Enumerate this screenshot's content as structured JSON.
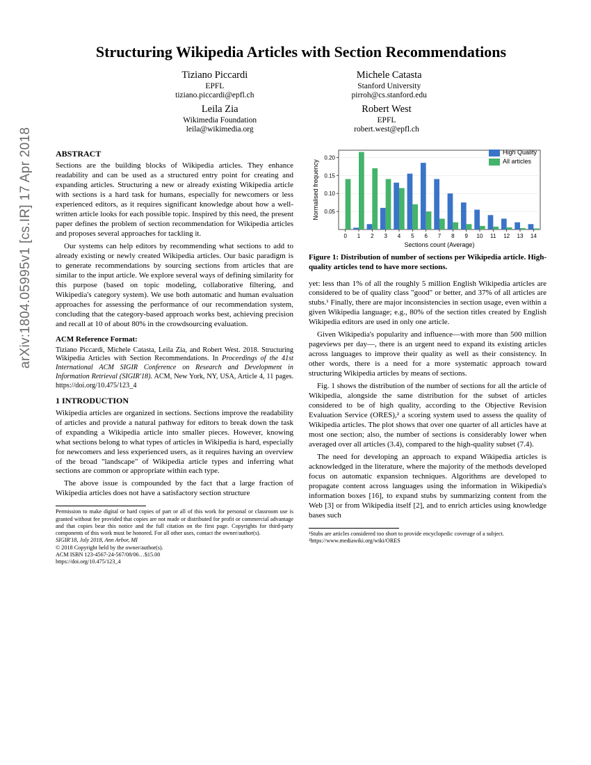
{
  "arxiv": "arXiv:1804.05995v1  [cs.IR]  17 Apr 2018",
  "title": "Structuring Wikipedia Articles with Section Recommendations",
  "authors": [
    {
      "name": "Tiziano Piccardi",
      "aff": "EPFL",
      "mail": "tiziano.piccardi@epfl.ch"
    },
    {
      "name": "Michele Catasta",
      "aff": "Stanford University",
      "mail": "pirroh@cs.stanford.edu"
    },
    {
      "name": "Leila Zia",
      "aff": "Wikimedia Foundation",
      "mail": "leila@wikimedia.org"
    },
    {
      "name": "Robert West",
      "aff": "EPFL",
      "mail": "robert.west@epfl.ch"
    }
  ],
  "abstract_head": "ABSTRACT",
  "abstract_p1": "Sections are the building blocks of Wikipedia articles. They enhance readability and can be used as a structured entry point for creating and expanding articles. Structuring a new or already existing Wikipedia article with sections is a hard task for humans, especially for newcomers or less experienced editors, as it requires significant knowledge about how a well-written article looks for each possible topic. Inspired by this need, the present paper defines the problem of section recommendation for Wikipedia articles and proposes several approaches for tackling it.",
  "abstract_p2": "Our systems can help editors by recommending what sections to add to already existing or newly created Wikipedia articles. Our basic paradigm is to generate recommendations by sourcing sections from articles that are similar to the input article. We explore several ways of defining similarity for this purpose (based on topic modeling, collaborative filtering, and Wikipedia's category system). We use both automatic and human evaluation approaches for assessing the performance of our recommendation system, concluding that the category-based approach works best, achieving precision and recall at 10 of about 80% in the crowdsourcing evaluation.",
  "ref_head": "ACM Reference Format:",
  "ref_body_a": "Tiziano Piccardi, Michele Catasta, Leila Zia, and Robert West. 2018. Structuring Wikipedia Articles with Section Recommendations. In ",
  "ref_body_i": "Proceedings of the 41st International ACM SIGIR Conference on Research and Development in Information Retrieval (SIGIR'18).",
  "ref_body_b": " ACM, New York, NY, USA, Article 4, 11 pages. https://doi.org/10.475/123_4",
  "intro_head": "1   INTRODUCTION",
  "intro_p1": "Wikipedia articles are organized in sections. Sections improve the readability of articles and provide a natural pathway for editors to break down the task of expanding a Wikipedia article into smaller pieces. However, knowing what sections belong to what types of articles in Wikipedia is hard, especially for newcomers and less experienced users, as it requires having an overview of the broad \"landscape\" of Wikipedia article types and inferring what sections are common or appropriate within each type.",
  "intro_p2": "The above issue is compounded by the fact that a large fraction of Wikipedia articles does not have a satisfactory section structure",
  "perm1": "Permission to make digital or hard copies of part or all of this work for personal or classroom use is granted without fee provided that copies are not made or distributed for profit or commercial advantage and that copies bear this notice and the full citation on the first page. Copyrights for third-party components of this work must be honored. For all other uses, contact the owner/author(s).",
  "perm2": "SIGIR'18, July 2018, Ann Arbor, MI",
  "perm3": "© 2018 Copyright held by the owner/author(s).",
  "perm4": "ACM ISBN 123-4567-24-567/08/06…$15.00",
  "perm5": "https://doi.org/10.475/123_4",
  "fig1_caption": "Figure 1: Distribution of number of sections per Wikipedia article. High-quality articles tend to have more sections.",
  "chart": {
    "type": "bar",
    "categories": [
      "0",
      "1",
      "2",
      "3",
      "4",
      "5",
      "6",
      "7",
      "8",
      "9",
      "10",
      "11",
      "12",
      "13",
      "14"
    ],
    "series": [
      {
        "name": "High Quality",
        "color": "#3a74c8",
        "values": [
          0,
          0.005,
          0.015,
          0.06,
          0.13,
          0.155,
          0.185,
          0.14,
          0.1,
          0.075,
          0.055,
          0.04,
          0.03,
          0.02,
          0.015
        ]
      },
      {
        "name": "All articles",
        "color": "#44b36b",
        "values": [
          0.14,
          0.215,
          0.17,
          0.14,
          0.115,
          0.07,
          0.05,
          0.03,
          0.02,
          0.015,
          0.01,
          0.008,
          0.006,
          0.004,
          0.003
        ]
      }
    ],
    "ylabel": "Normalised frequency",
    "xlabel": "Sections count (Average)",
    "ylim": [
      0,
      0.22
    ],
    "yticks": [
      0.05,
      0.1,
      0.15,
      0.2
    ],
    "background_color": "#ffffff",
    "grid_color": "#dddddd",
    "label_fontsize": 9,
    "tick_fontsize": 8,
    "bar_width": 0.4
  },
  "col2_p1": "yet: less than 1% of all the roughly 5 million English Wikipedia articles are considered to be of quality class \"good\" or better, and 37% of all articles are stubs.¹ Finally, there are major inconsistencies in section usage, even within a given Wikipedia language; e.g., 80% of the section titles created by English Wikipedia editors are used in only one article.",
  "col2_p2": "Given Wikipedia's popularity and influence—with more than 500 million pageviews per day—, there is an urgent need to expand its existing articles across languages to improve their quality as well as their consistency. In other words, there is a need for a more systematic approach toward structuring Wikipedia articles by means of sections.",
  "col2_p3": "Fig. 1 shows the distribution of the number of sections for all the article of Wikipedia, alongside the same distribution for the subset of articles considered to be of high quality, according to the Objective Revision Evaluation Service (ORES),² a scoring system used to assess the quality of Wikipedia articles. The plot shows that over one quarter of all articles have at most one section; also, the number of sections is considerably lower when averaged over all articles (3.4), compared to the high-quality subset (7.4).",
  "col2_p4": "The need for developing an approach to expand Wikipedia articles is acknowledged in the literature, where the majority of the methods developed focus on automatic expansion techniques. Algorithms are developed to propagate content across languages using the information in Wikipedia's information boxes [16], to expand stubs by summarizing content from the Web [3] or from Wikipedia itself [2], and to enrich articles using knowledge bases such",
  "fn1": "¹Stubs are articles considered too short to provide encyclopedic coverage of a subject.",
  "fn2": "²https://www.mediawiki.org/wiki/ORES"
}
